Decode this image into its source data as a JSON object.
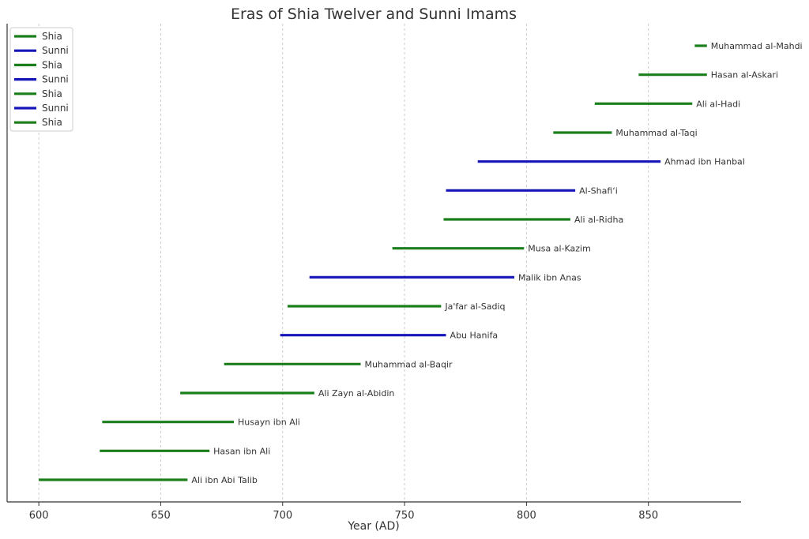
{
  "chart_data": {
    "type": "timeline",
    "title": "Eras of Shia Twelver and Sunni Imams",
    "xlabel": "Year (AD)",
    "ylabel": "",
    "xlim": [
      587,
      888
    ],
    "x_ticks": [
      600,
      650,
      700,
      750,
      800,
      850
    ],
    "grid": "vertical",
    "legend_position": "top-left",
    "colors": {
      "Shia": "#1a7f1a",
      "Sunni": "#1515b8"
    },
    "legend": [
      "Shia",
      "Sunni",
      "Shia",
      "Sunni",
      "Shia",
      "Sunni",
      "Shia"
    ],
    "series": [
      {
        "name": "Ali ibn Abi Talib",
        "group": "Shia",
        "start": 600,
        "end": 661
      },
      {
        "name": "Hasan ibn Ali",
        "group": "Shia",
        "start": 625,
        "end": 670
      },
      {
        "name": "Husayn ibn Ali",
        "group": "Shia",
        "start": 626,
        "end": 680
      },
      {
        "name": "Ali Zayn al-Abidin",
        "group": "Shia",
        "start": 658,
        "end": 713
      },
      {
        "name": "Muhammad al-Baqir",
        "group": "Shia",
        "start": 676,
        "end": 732
      },
      {
        "name": "Abu Hanifa",
        "group": "Sunni",
        "start": 699,
        "end": 767
      },
      {
        "name": "Ja'far al-Sadiq",
        "group": "Shia",
        "start": 702,
        "end": 765
      },
      {
        "name": "Malik ibn Anas",
        "group": "Sunni",
        "start": 711,
        "end": 795
      },
      {
        "name": "Musa al-Kazim",
        "group": "Shia",
        "start": 745,
        "end": 799
      },
      {
        "name": "Ali al-Ridha",
        "group": "Shia",
        "start": 766,
        "end": 818
      },
      {
        "name": "Al-Shafi‘i",
        "group": "Sunni",
        "start": 767,
        "end": 820
      },
      {
        "name": "Ahmad ibn Hanbal",
        "group": "Sunni",
        "start": 780,
        "end": 855
      },
      {
        "name": "Muhammad al-Taqi",
        "group": "Shia",
        "start": 811,
        "end": 835
      },
      {
        "name": "Ali al-Hadi",
        "group": "Shia",
        "start": 828,
        "end": 868
      },
      {
        "name": "Hasan al-Askari",
        "group": "Shia",
        "start": 846,
        "end": 874
      },
      {
        "name": "Muhammad al-Mahdi",
        "group": "Shia",
        "start": 869,
        "end": 874
      }
    ]
  }
}
